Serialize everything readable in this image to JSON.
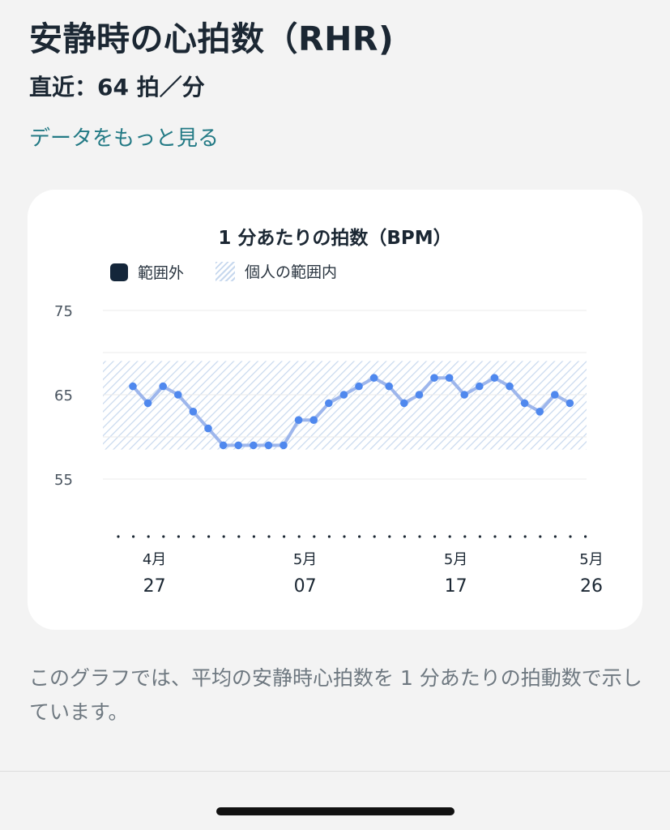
{
  "header": {
    "title": "安静時の心拍数（RHR)",
    "latest": "直近：64 拍／分",
    "more_link": "データをもっと見る"
  },
  "legend": {
    "out_of_range": "範囲外",
    "personal_range": "個人の範囲内"
  },
  "description": "このグラフでは、平均の安静時心拍数を 1 分あたりの拍動数で示しています。",
  "colors": {
    "line": "#9db6ec",
    "point": "#4f88ee",
    "range_hatch": "#c7d8ee",
    "out_of_range": "#14263a",
    "link": "#237a85"
  },
  "chart_data": {
    "type": "line",
    "title": "1 分あたりの拍数（BPM）",
    "y_ticks": [
      75,
      65,
      55
    ],
    "ylim": [
      52,
      77
    ],
    "personal_range": [
      58.5,
      69
    ],
    "x_tick_labels": [
      {
        "month": "4月",
        "day": "27",
        "index": 1
      },
      {
        "month": "5月",
        "day": "07",
        "index": 11
      },
      {
        "month": "5月",
        "day": "17",
        "index": 21
      },
      {
        "month": "5月",
        "day": "26",
        "index": 30
      }
    ],
    "series": [
      {
        "values": [
          66,
          64,
          66,
          65,
          63,
          61,
          59,
          59,
          59,
          59,
          59,
          62,
          62,
          64,
          65,
          66,
          67,
          66,
          64,
          65,
          67,
          67,
          65,
          66,
          67,
          66,
          64,
          63,
          65,
          64
        ]
      }
    ],
    "grid": true
  }
}
